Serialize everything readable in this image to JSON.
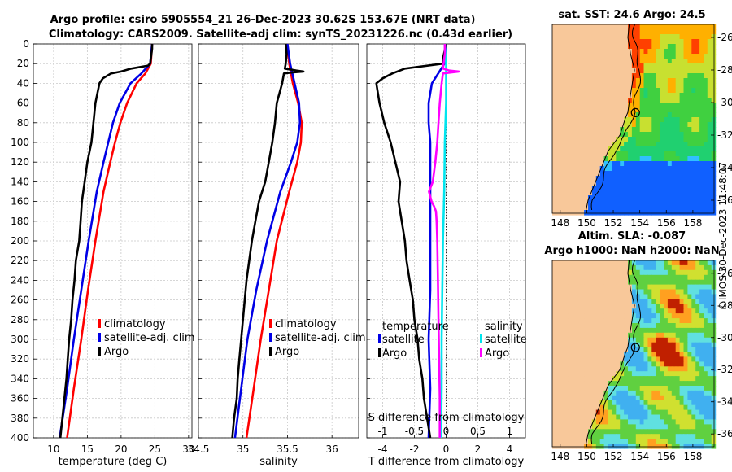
{
  "title": {
    "line1": "Argo profile: csiro 5905554_21 26-Dec-2023 30.62S 153.67E (NRT data)",
    "line2": "Climatology: CARS2009. Satellite-adj clim: synTS_20231226.nc (0.43d earlier)"
  },
  "map1_title": "sat. SST: 24.6 Argo: 24.5",
  "map2_title": {
    "line1": "Altim. SLA: -0.087",
    "line2": "Argo h1000: NaN h2000: NaN"
  },
  "watermark": "©IMOS 30-Dec-2023 11:48:07",
  "colors": {
    "climatology": "#ff0000",
    "satellite": "#0000e6",
    "argo": "#000000",
    "sat_salinity": "#00e5ee",
    "argo_salinity": "#ff00ff",
    "land": "#f8c89a"
  },
  "chart_data": [
    {
      "type": "line",
      "id": "temperature",
      "xlabel": "temperature (deg C)",
      "ylabel": "",
      "xlim": [
        7,
        30.5
      ],
      "ylim": [
        400,
        0
      ],
      "xticks": [
        10,
        15,
        20,
        25,
        30
      ],
      "yticks": [
        0,
        20,
        40,
        60,
        80,
        100,
        120,
        140,
        160,
        180,
        200,
        220,
        240,
        260,
        280,
        300,
        320,
        340,
        360,
        380,
        400
      ],
      "legend": [
        "climatology",
        "satellite-adj. clim",
        "Argo"
      ],
      "series": [
        {
          "name": "climatology",
          "depth": [
            0,
            20,
            30,
            40,
            60,
            80,
            100,
            120,
            150,
            200,
            250,
            300,
            350,
            400
          ],
          "values": [
            24.6,
            24.4,
            23.6,
            22.3,
            20.9,
            19.9,
            19.1,
            18.4,
            17.4,
            16.2,
            15.1,
            14.1,
            13.0,
            12.0
          ]
        },
        {
          "name": "satellite-adj. clim",
          "depth": [
            0,
            20,
            30,
            40,
            60,
            80,
            100,
            120,
            150,
            200,
            250,
            300,
            350,
            400
          ],
          "values": [
            24.6,
            24.3,
            23.0,
            21.4,
            19.8,
            18.8,
            18.1,
            17.4,
            16.4,
            15.2,
            14.1,
            13.0,
            12.0,
            10.9
          ]
        },
        {
          "name": "Argo",
          "depth": [
            0,
            5,
            10,
            15,
            20,
            22,
            25,
            28,
            30,
            35,
            40,
            50,
            60,
            80,
            100,
            120,
            140,
            160,
            180,
            200,
            220,
            240,
            260,
            280,
            300,
            320,
            340,
            360,
            380,
            400
          ],
          "values": [
            24.6,
            24.6,
            24.5,
            24.4,
            24.3,
            24.0,
            21.5,
            20.0,
            18.5,
            17.3,
            16.8,
            16.5,
            16.2,
            15.9,
            15.6,
            15.0,
            14.6,
            14.2,
            14.0,
            13.8,
            13.3,
            13.1,
            12.8,
            12.6,
            12.3,
            12.1,
            11.9,
            11.6,
            11.3,
            11.0
          ]
        }
      ]
    },
    {
      "type": "line",
      "id": "salinity",
      "xlabel": "salinity",
      "xlim": [
        34.5,
        36.3
      ],
      "ylim": [
        400,
        0
      ],
      "xticks": [
        34.5,
        35,
        35.5,
        36
      ],
      "legend": [
        "climatology",
        "satellite-adj. clim",
        "Argo"
      ],
      "series": [
        {
          "name": "climatology",
          "depth": [
            0,
            20,
            40,
            60,
            80,
            100,
            120,
            150,
            200,
            250,
            300,
            350,
            400
          ],
          "values": [
            35.5,
            35.52,
            35.56,
            35.62,
            35.66,
            35.65,
            35.61,
            35.52,
            35.38,
            35.29,
            35.2,
            35.12,
            35.04
          ]
        },
        {
          "name": "satellite-adj. clim",
          "depth": [
            0,
            20,
            40,
            60,
            80,
            100,
            120,
            150,
            200,
            250,
            300,
            350,
            400
          ],
          "values": [
            35.5,
            35.53,
            35.58,
            35.63,
            35.64,
            35.61,
            35.54,
            35.42,
            35.27,
            35.15,
            35.05,
            34.98,
            34.91
          ]
        },
        {
          "name": "Argo",
          "depth": [
            0,
            10,
            20,
            25,
            27,
            28,
            29,
            30,
            40,
            60,
            80,
            100,
            120,
            140,
            160,
            180,
            200,
            220,
            240,
            260,
            280,
            300,
            320,
            340,
            360,
            380,
            400
          ],
          "values": [
            35.48,
            35.49,
            35.48,
            35.47,
            35.6,
            35.68,
            35.55,
            35.46,
            35.44,
            35.38,
            35.36,
            35.33,
            35.29,
            35.25,
            35.18,
            35.14,
            35.1,
            35.07,
            35.04,
            35.02,
            35.0,
            34.98,
            34.96,
            34.94,
            34.93,
            34.9,
            34.88
          ]
        }
      ]
    },
    {
      "type": "line",
      "id": "difference",
      "xlabel": "T difference from climatology",
      "top_xlabel": "S difference from climatology",
      "xlim": [
        -5,
        5
      ],
      "ylim": [
        400,
        0
      ],
      "xticks": [
        -4,
        -2,
        0,
        2,
        4
      ],
      "top_xticks": [
        -1,
        -0.5,
        0,
        0.5,
        1
      ],
      "legend_headers": [
        "temperature",
        "salinity"
      ],
      "legend_temperature": [
        "satellite",
        "Argo"
      ],
      "legend_salinity": [
        "satellite",
        "Argo"
      ],
      "series": [
        {
          "name": "T satellite",
          "depth": [
            0,
            20,
            40,
            60,
            80,
            100,
            150,
            200,
            250,
            300,
            350,
            400
          ],
          "values": [
            0.0,
            -0.1,
            -0.9,
            -1.1,
            -1.1,
            -1.0,
            -1.0,
            -1.0,
            -1.0,
            -1.1,
            -1.0,
            -1.1
          ]
        },
        {
          "name": "T Argo",
          "depth": [
            0,
            15,
            20,
            25,
            30,
            35,
            40,
            50,
            60,
            80,
            100,
            120,
            140,
            160,
            180,
            200,
            220,
            240,
            260,
            280,
            300,
            320,
            340,
            360,
            380,
            400
          ],
          "values": [
            0.0,
            -0.2,
            -0.2,
            -2.6,
            -3.4,
            -4.0,
            -4.4,
            -4.3,
            -4.2,
            -3.9,
            -3.5,
            -3.2,
            -2.9,
            -3.0,
            -2.8,
            -2.6,
            -2.5,
            -2.3,
            -2.1,
            -2.0,
            -1.8,
            -1.7,
            -1.5,
            -1.4,
            -1.2,
            -1.0
          ]
        },
        {
          "name": "S satellite",
          "depth": [
            0,
            20,
            40,
            60,
            80,
            100,
            150,
            200,
            250,
            300,
            350,
            400
          ],
          "values": [
            -0.02,
            0.0,
            0.0,
            0.0,
            -0.01,
            -0.02,
            -0.03,
            -0.05,
            -0.06,
            -0.07,
            -0.07,
            -0.08
          ]
        },
        {
          "name": "S Argo",
          "depth": [
            0,
            10,
            20,
            25,
            27,
            28,
            29,
            30,
            35,
            40,
            60,
            80,
            100,
            120,
            140,
            150,
            160,
            165,
            170,
            180,
            200,
            240,
            280,
            320,
            360,
            400
          ],
          "values": [
            -0.02,
            -0.02,
            -0.04,
            -0.05,
            0.05,
            0.2,
            0.08,
            -0.05,
            -0.06,
            -0.07,
            -0.1,
            -0.12,
            -0.14,
            -0.17,
            -0.21,
            -0.27,
            -0.23,
            -0.19,
            -0.16,
            -0.15,
            -0.14,
            -0.13,
            -0.12,
            -0.11,
            -0.1,
            -0.1
          ]
        }
      ]
    },
    {
      "type": "heatmap",
      "id": "sst_map",
      "title": "sat. SST: 24.6 Argo: 24.5",
      "xlim": [
        147.4,
        159.6
      ],
      "ylim": [
        -36.8,
        -25.2
      ],
      "xticks": [
        148,
        150,
        152,
        154,
        156,
        158
      ],
      "yticks": [
        -26,
        -28,
        -30,
        -32,
        -34,
        -36
      ],
      "argo_position": {
        "lon": 153.67,
        "lat": -30.62
      }
    },
    {
      "type": "heatmap",
      "id": "sla_map",
      "title": "Altim. SLA: -0.087",
      "xlim": [
        147.4,
        159.6
      ],
      "ylim": [
        -36.8,
        -25.2
      ],
      "xticks": [
        148,
        150,
        152,
        154,
        156,
        158
      ],
      "yticks": [
        -26,
        -28,
        -30,
        -32,
        -34,
        -36
      ],
      "argo_position": {
        "lon": 153.67,
        "lat": -30.62
      }
    }
  ]
}
